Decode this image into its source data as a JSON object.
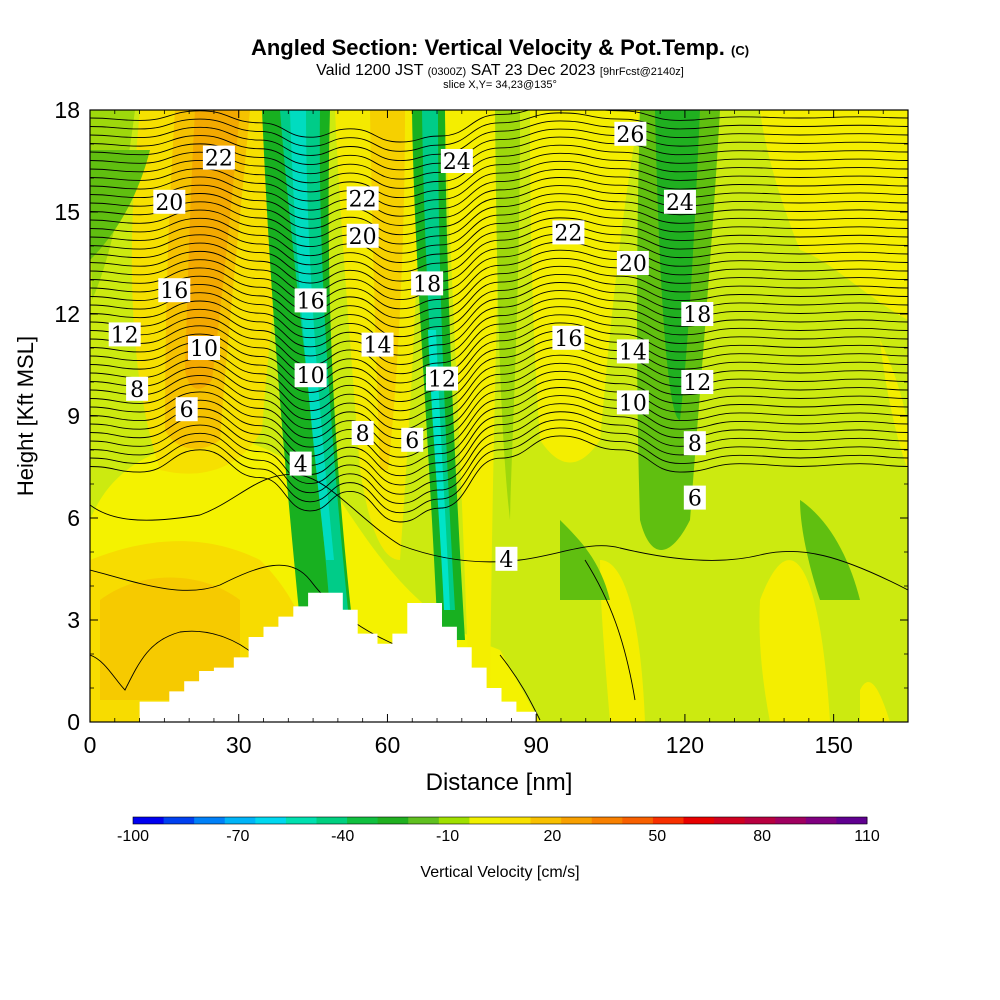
{
  "titles": {
    "main": "Angled Section: Vertical Velocity & Pot.Temp.",
    "main_suffix": "(C)",
    "valid_prefix": "Valid 1200 JST",
    "valid_zulu": "(0300Z)",
    "valid_date": "SAT 23 Dec 2023",
    "valid_fcst": "[9hrFcst@2140z]",
    "slice": "slice X,Y= 34,23@135°"
  },
  "chart_data": {
    "type": "heatmap",
    "xlabel": "Distance [nm]",
    "ylabel": "Height [Kft MSL]",
    "xlim": [
      0,
      165
    ],
    "ylim": [
      0,
      18
    ],
    "x_ticks": [
      0,
      30,
      60,
      90,
      120,
      150
    ],
    "y_ticks": [
      0,
      3,
      6,
      9,
      12,
      15,
      18
    ],
    "fill_field": "Vertical Velocity [cm/s]",
    "contour_field": "Potential Temperature (C)",
    "contour_labels": [
      {
        "text": "22",
        "x": 26,
        "y": 16.6
      },
      {
        "text": "20",
        "x": 16,
        "y": 15.3
      },
      {
        "text": "16",
        "x": 17,
        "y": 12.7
      },
      {
        "text": "12",
        "x": 7,
        "y": 11.4
      },
      {
        "text": "10",
        "x": 23,
        "y": 11.0
      },
      {
        "text": "8",
        "x": 9.5,
        "y": 9.8
      },
      {
        "text": "6",
        "x": 19.5,
        "y": 9.2
      },
      {
        "text": "4",
        "x": 42.5,
        "y": 7.6
      },
      {
        "text": "16",
        "x": 44.5,
        "y": 12.4
      },
      {
        "text": "10",
        "x": 44.5,
        "y": 10.2
      },
      {
        "text": "22",
        "x": 55,
        "y": 15.4
      },
      {
        "text": "20",
        "x": 55,
        "y": 14.3
      },
      {
        "text": "14",
        "x": 58,
        "y": 11.1
      },
      {
        "text": "8",
        "x": 55,
        "y": 8.5
      },
      {
        "text": "6",
        "x": 65,
        "y": 8.3
      },
      {
        "text": "18",
        "x": 68,
        "y": 12.9
      },
      {
        "text": "12",
        "x": 71,
        "y": 10.1
      },
      {
        "text": "24",
        "x": 74,
        "y": 16.5
      },
      {
        "text": "4",
        "x": 84,
        "y": 4.8
      },
      {
        "text": "22",
        "x": 96.5,
        "y": 14.4
      },
      {
        "text": "16",
        "x": 96.5,
        "y": 11.3
      },
      {
        "text": "26",
        "x": 109,
        "y": 17.3
      },
      {
        "text": "20",
        "x": 109.5,
        "y": 13.5
      },
      {
        "text": "14",
        "x": 109.5,
        "y": 10.9
      },
      {
        "text": "10",
        "x": 109.5,
        "y": 9.4
      },
      {
        "text": "24",
        "x": 119,
        "y": 15.3
      },
      {
        "text": "18",
        "x": 122.5,
        "y": 12.0
      },
      {
        "text": "12",
        "x": 122.5,
        "y": 10.0
      },
      {
        "text": "8",
        "x": 122,
        "y": 8.2
      },
      {
        "text": "6",
        "x": 122,
        "y": 6.6
      }
    ],
    "terrain_profile": [
      [
        10,
        0
      ],
      [
        10,
        0.6
      ],
      [
        16,
        0.6
      ],
      [
        16,
        0.9
      ],
      [
        19,
        0.9
      ],
      [
        19,
        1.2
      ],
      [
        22,
        1.2
      ],
      [
        22,
        1.5
      ],
      [
        25,
        1.5
      ],
      [
        25,
        1.6
      ],
      [
        29,
        1.6
      ],
      [
        29,
        1.9
      ],
      [
        32,
        1.9
      ],
      [
        32,
        2.5
      ],
      [
        35,
        2.5
      ],
      [
        35,
        2.8
      ],
      [
        38,
        2.8
      ],
      [
        38,
        3.1
      ],
      [
        41,
        3.1
      ],
      [
        41,
        3.4
      ],
      [
        44,
        3.4
      ],
      [
        44,
        3.8
      ],
      [
        51,
        3.8
      ],
      [
        51,
        3.3
      ],
      [
        54,
        3.3
      ],
      [
        54,
        2.6
      ],
      [
        58,
        2.6
      ],
      [
        58,
        2.3
      ],
      [
        61,
        2.3
      ],
      [
        61,
        2.6
      ],
      [
        64,
        2.6
      ],
      [
        64,
        3.5
      ],
      [
        71,
        3.5
      ],
      [
        71,
        2.8
      ],
      [
        74,
        2.8
      ],
      [
        74,
        2.2
      ],
      [
        77,
        2.2
      ],
      [
        77,
        1.6
      ],
      [
        80,
        1.6
      ],
      [
        80,
        1.0
      ],
      [
        83,
        1.0
      ],
      [
        83,
        0.6
      ],
      [
        86,
        0.6
      ],
      [
        86,
        0.3
      ],
      [
        90,
        0.3
      ],
      [
        90,
        0
      ]
    ],
    "colorbar": {
      "title": "Vertical Velocity [cm/s]",
      "range": [
        -100,
        110
      ],
      "tick_labels": [
        "-100",
        "-70",
        "-40",
        "-10",
        "20",
        "50",
        "80",
        "110"
      ],
      "colors": [
        "#0000f0",
        "#0040f0",
        "#0080f8",
        "#00b4f8",
        "#00d8f0",
        "#00e0b0",
        "#00d080",
        "#10c040",
        "#20b020",
        "#60c020",
        "#a0e000",
        "#f0f000",
        "#f8e000",
        "#f8c000",
        "#f8a000",
        "#f88000",
        "#f86000",
        "#f83000",
        "#e80000",
        "#d00020",
        "#b80040",
        "#a00060",
        "#800080",
        "#600090"
      ]
    }
  }
}
